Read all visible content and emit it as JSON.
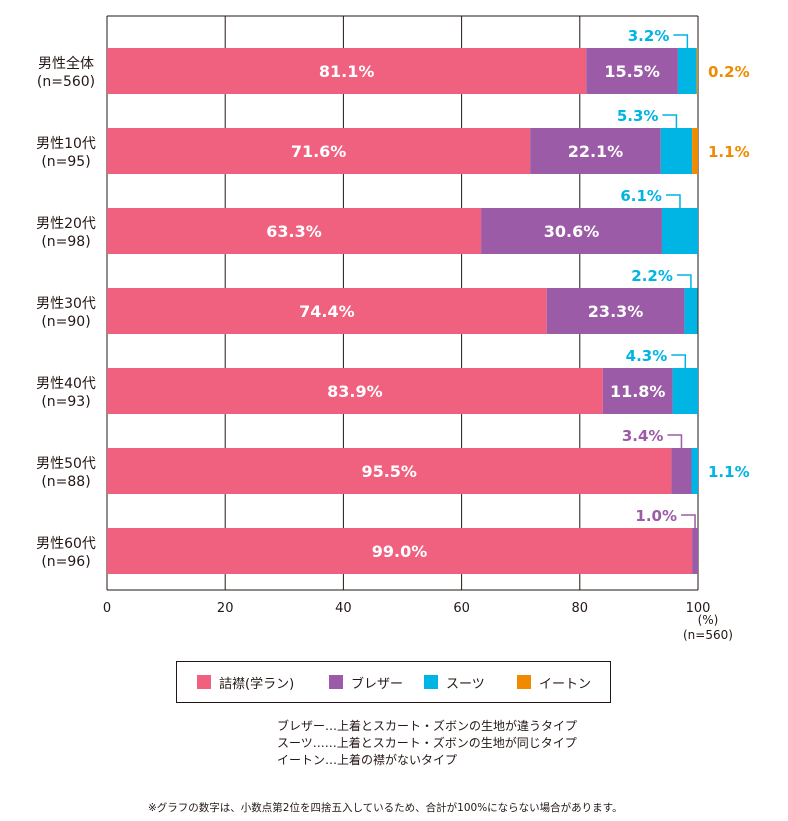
{
  "chart_data": {
    "type": "bar",
    "orientation": "horizontal",
    "stacked": true,
    "categories": [
      {
        "name": "男性全体",
        "n": "(n=560)"
      },
      {
        "name": "男性10代",
        "n": "(n=95)"
      },
      {
        "name": "男性20代",
        "n": "(n=98)"
      },
      {
        "name": "男性30代",
        "n": "(n=90)"
      },
      {
        "name": "男性40代",
        "n": "(n=93)"
      },
      {
        "name": "男性50代",
        "n": "(n=88)"
      },
      {
        "name": "男性60代",
        "n": "(n=96)"
      }
    ],
    "series": [
      {
        "name": "詰襟(学ラン)",
        "color": "#f0607f",
        "values": [
          81.1,
          71.6,
          63.3,
          74.4,
          83.9,
          95.5,
          99.0
        ]
      },
      {
        "name": "ブレザー",
        "color": "#9b5ba6",
        "values": [
          15.5,
          22.1,
          30.6,
          23.3,
          11.8,
          3.4,
          1.0
        ]
      },
      {
        "name": "スーツ",
        "color": "#00b4e4",
        "values": [
          3.2,
          5.3,
          6.1,
          2.2,
          4.3,
          1.1,
          null
        ]
      },
      {
        "name": "イートン",
        "color": "#f08a00",
        "values": [
          0.2,
          1.1,
          null,
          null,
          null,
          null,
          null
        ]
      }
    ],
    "labels": [
      {
        "inside": [
          "81.1%",
          "15.5%"
        ],
        "callouts": [
          {
            "text": "3.2%",
            "series": 2,
            "pos": "above"
          },
          {
            "text": "0.2%",
            "series": 3,
            "pos": "right"
          }
        ]
      },
      {
        "inside": [
          "71.6%",
          "22.1%"
        ],
        "callouts": [
          {
            "text": "5.3%",
            "series": 2,
            "pos": "above"
          },
          {
            "text": "1.1%",
            "series": 3,
            "pos": "right"
          }
        ]
      },
      {
        "inside": [
          "63.3%",
          "30.6%"
        ],
        "callouts": [
          {
            "text": "6.1%",
            "series": 2,
            "pos": "above"
          }
        ]
      },
      {
        "inside": [
          "74.4%",
          "23.3%"
        ],
        "callouts": [
          {
            "text": "2.2%",
            "series": 2,
            "pos": "above"
          }
        ]
      },
      {
        "inside": [
          "83.9%",
          "11.8%"
        ],
        "callouts": [
          {
            "text": "4.3%",
            "series": 2,
            "pos": "above"
          }
        ]
      },
      {
        "inside": [
          "95.5%",
          null
        ],
        "callouts": [
          {
            "text": "3.4%",
            "series": 1,
            "pos": "above"
          },
          {
            "text": "1.1%",
            "series": 2,
            "pos": "right"
          }
        ]
      },
      {
        "inside": [
          "99.0%",
          null
        ],
        "callouts": [
          {
            "text": "1.0%",
            "series": 1,
            "pos": "above"
          }
        ]
      }
    ],
    "xlim": [
      0,
      100
    ],
    "xticks": [
      "0",
      "20",
      "40",
      "60",
      "80",
      "100"
    ],
    "unit_label": "(%)",
    "total_n": "(n=560)",
    "grid": true
  },
  "legend": [
    {
      "label": "詰襟(学ラン)",
      "color": "#f0607f"
    },
    {
      "label": "ブレザー",
      "color": "#9b5ba6"
    },
    {
      "label": "スーツ",
      "color": "#00b4e4"
    },
    {
      "label": "イートン",
      "color": "#f08a00"
    }
  ],
  "notes": [
    "ブレザー…上着とスカート・ズボンの生地が違うタイプ",
    "スーツ……上着とスカート・ズボンの生地が同じタイプ",
    "イートン…上着の襟がないタイプ"
  ],
  "footnote": "※グラフの数字は、小数点第2位を四捨五入しているため、合計が100%にならない場合があります。"
}
